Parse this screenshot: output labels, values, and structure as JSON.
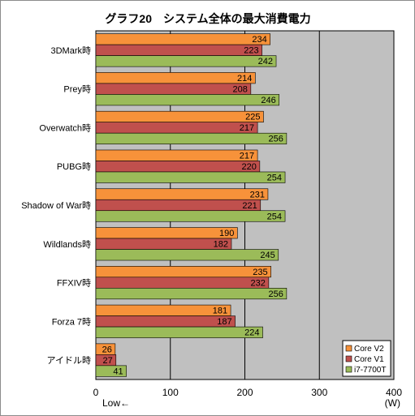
{
  "chart_data": {
    "type": "bar",
    "orientation": "horizontal",
    "title": "グラフ20　システム全体の最大消費電力",
    "categories": [
      "3DMark時",
      "Prey時",
      "Overwatch時",
      "PUBG時",
      "Shadow of War時",
      "Wildlands時",
      "FFXIV時",
      "Forza 7時",
      "アイドル時"
    ],
    "series": [
      {
        "name": "Core V2",
        "color": "#f7923a",
        "values": [
          234,
          214,
          225,
          217,
          231,
          190,
          235,
          181,
          26
        ]
      },
      {
        "name": "Core V1",
        "color": "#c0504d",
        "values": [
          223,
          208,
          217,
          220,
          221,
          182,
          232,
          187,
          27
        ]
      },
      {
        "name": "i7-7700T",
        "color": "#9bbb59",
        "values": [
          242,
          246,
          256,
          254,
          254,
          245,
          256,
          224,
          41
        ]
      }
    ],
    "xlim": [
      0,
      400
    ],
    "xticks": [
      0,
      100,
      200,
      300,
      400
    ],
    "xunit": "(W)",
    "low_label": "Low←",
    "grid": true,
    "legend": "bottom-right",
    "plot_bg": "#c0c0c0"
  }
}
